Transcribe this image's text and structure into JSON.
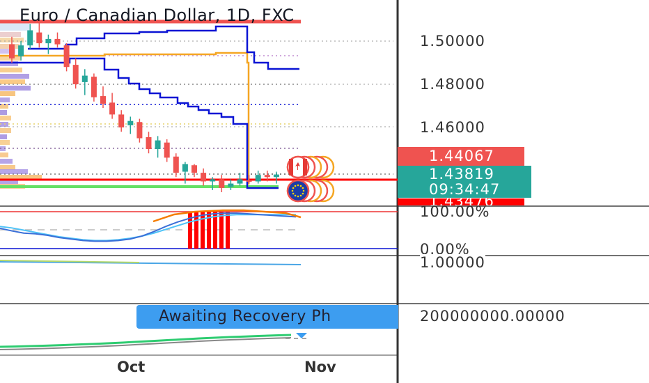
{
  "chart_data": {
    "type": "candlestick",
    "title": "Euro / Canadian Dollar, 1D, FXC",
    "price_axis": {
      "ticks": [
        "1.50000",
        "1.48000",
        "1.46000"
      ],
      "range": [
        1.433,
        1.506
      ]
    },
    "price_tags": [
      {
        "value": "1.44067",
        "color": "#ef5350"
      },
      {
        "value": "1.43819",
        "countdown": "09:34:47",
        "color": "#26a69a"
      },
      {
        "value": "1.43476",
        "color": "#ff0000"
      }
    ],
    "oscillator_axis": {
      "ticks": [
        "100.00%",
        "0.00%"
      ]
    },
    "indicator3_axis": {
      "ticks": [
        "1.00000"
      ]
    },
    "volume_axis": {
      "ticks": [
        "200000000.00000"
      ]
    },
    "banner": "Awaiting Recovery Ph",
    "time_axis": [
      "Oct",
      "Nov"
    ],
    "candles": [
      {
        "o": 1.4985,
        "h": 1.502,
        "l": 1.49,
        "c": 1.492
      },
      {
        "o": 1.493,
        "h": 1.5,
        "l": 1.491,
        "c": 1.498
      },
      {
        "o": 1.498,
        "h": 1.508,
        "l": 1.4965,
        "c": 1.505
      },
      {
        "o": 1.504,
        "h": 1.509,
        "l": 1.497,
        "c": 1.499
      },
      {
        "o": 1.499,
        "h": 1.503,
        "l": 1.494,
        "c": 1.501
      },
      {
        "o": 1.501,
        "h": 1.504,
        "l": 1.497,
        "c": 1.4985
      },
      {
        "o": 1.498,
        "h": 1.499,
        "l": 1.486,
        "c": 1.488
      },
      {
        "o": 1.489,
        "h": 1.492,
        "l": 1.478,
        "c": 1.48
      },
      {
        "o": 1.481,
        "h": 1.487,
        "l": 1.475,
        "c": 1.484
      },
      {
        "o": 1.4835,
        "h": 1.485,
        "l": 1.472,
        "c": 1.474
      },
      {
        "o": 1.4745,
        "h": 1.479,
        "l": 1.469,
        "c": 1.471
      },
      {
        "o": 1.4715,
        "h": 1.476,
        "l": 1.464,
        "c": 1.466
      },
      {
        "o": 1.466,
        "h": 1.468,
        "l": 1.458,
        "c": 1.46
      },
      {
        "o": 1.461,
        "h": 1.465,
        "l": 1.457,
        "c": 1.463
      },
      {
        "o": 1.4625,
        "h": 1.464,
        "l": 1.453,
        "c": 1.455
      },
      {
        "o": 1.4555,
        "h": 1.458,
        "l": 1.448,
        "c": 1.45
      },
      {
        "o": 1.45,
        "h": 1.456,
        "l": 1.446,
        "c": 1.454
      },
      {
        "o": 1.453,
        "h": 1.4545,
        "l": 1.444,
        "c": 1.446
      },
      {
        "o": 1.4465,
        "h": 1.448,
        "l": 1.437,
        "c": 1.439
      },
      {
        "o": 1.4395,
        "h": 1.444,
        "l": 1.434,
        "c": 1.443
      },
      {
        "o": 1.4425,
        "h": 1.443,
        "l": 1.437,
        "c": 1.439
      },
      {
        "o": 1.439,
        "h": 1.441,
        "l": 1.433,
        "c": 1.435
      },
      {
        "o": 1.435,
        "h": 1.437,
        "l": 1.431,
        "c": 1.436
      },
      {
        "o": 1.436,
        "h": 1.438,
        "l": 1.43,
        "c": 1.432
      },
      {
        "o": 1.4325,
        "h": 1.436,
        "l": 1.431,
        "c": 1.434
      },
      {
        "o": 1.434,
        "h": 1.439,
        "l": 1.433,
        "c": 1.436
      },
      {
        "o": 1.4355,
        "h": 1.438,
        "l": 1.434,
        "c": 1.435
      },
      {
        "o": 1.435,
        "h": 1.44,
        "l": 1.434,
        "c": 1.438
      },
      {
        "o": 1.438,
        "h": 1.44,
        "l": 1.435,
        "c": 1.437
      },
      {
        "o": 1.437,
        "h": 1.4395,
        "l": 1.434,
        "c": 1.4382
      }
    ],
    "oscillator_k": [
      55,
      48,
      42,
      40,
      36,
      30,
      26,
      22,
      20,
      20,
      22,
      26,
      34,
      46,
      60,
      72,
      82,
      90,
      94,
      96,
      96,
      94,
      92,
      90,
      88,
      86
    ],
    "oscillator_d": [
      60,
      56,
      50,
      44,
      38,
      32,
      28,
      24,
      22,
      22,
      24,
      28,
      34,
      42,
      52,
      62,
      72,
      80,
      86,
      90,
      92,
      92,
      92,
      92,
      92,
      92
    ],
    "volume": [
      0.1,
      0.12,
      0.15,
      0.18,
      0.22,
      0.26,
      0.3,
      0.35,
      0.4,
      0.46,
      0.52,
      0.58,
      0.64,
      0.7,
      0.75,
      0.8,
      0.84,
      0.88,
      0.92,
      0.95
    ]
  },
  "colors": {
    "bull": "#26a69a",
    "bear": "#ef5350",
    "blue": "#0a14d4",
    "orange": "#f5a623",
    "red": "#ff0000",
    "green": "#66e066",
    "gridText": "#333333"
  }
}
